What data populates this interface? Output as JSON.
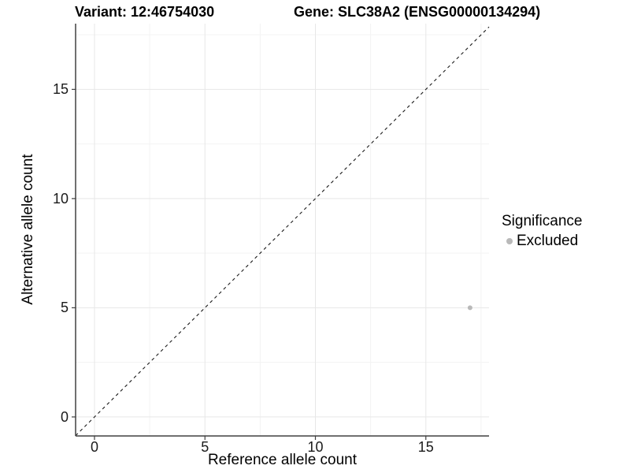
{
  "title": {
    "variant": "Variant: 12:46754030",
    "gene": "Gene: SLC38A2 (ENSG00000134294)"
  },
  "chart_data": {
    "type": "scatter",
    "xlabel": "Reference allele count",
    "ylabel": "Alternative allele count",
    "xlim": [
      -0.855,
      17.86
    ],
    "ylim": [
      -0.87,
      18.01
    ],
    "x_ticks": [
      0,
      5,
      10,
      15
    ],
    "y_ticks": [
      0,
      5,
      10,
      15
    ],
    "x_minor_ticks": [
      2.5,
      7.5,
      12.5,
      17.5
    ],
    "y_minor_ticks": [
      2.5,
      7.5,
      12.5,
      17.5
    ],
    "grid": "major-and-minor",
    "points": [
      {
        "x": 17,
        "y": 5,
        "series": "Excluded"
      }
    ],
    "reference_line": {
      "slope": 1,
      "intercept": 0,
      "style": "dashed"
    },
    "legend": {
      "title": "Significance",
      "position": "right",
      "items": [
        {
          "label": "Excluded",
          "color": "#b9b9b9"
        }
      ]
    }
  },
  "colors": {
    "background": "#ffffff",
    "axis_line": "#404040",
    "tick_mark": "#404040",
    "grid_major": "#e7e7e7",
    "grid_minor": "#f3f3f3",
    "reference_line": "#1a1a1a",
    "point": "#b9b9b9",
    "text": "#000000"
  }
}
